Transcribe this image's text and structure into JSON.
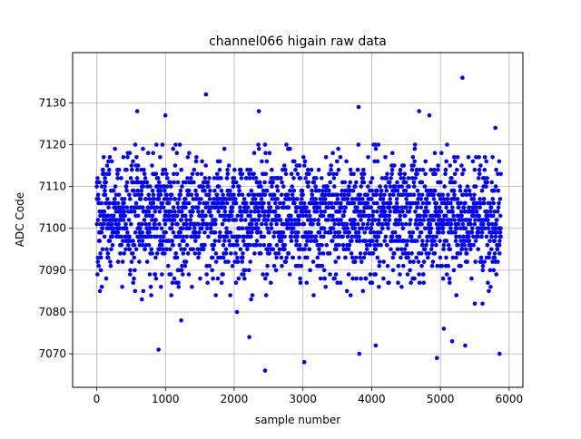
{
  "chart_data": {
    "type": "scatter",
    "title": "channel066 higain raw data",
    "xlabel": "sample number",
    "ylabel": "ADC Code",
    "xlim": [
      -350,
      6200
    ],
    "ylim": [
      7062,
      7142
    ],
    "x_ticks": [
      0,
      1000,
      2000,
      3000,
      4000,
      5000,
      6000
    ],
    "y_ticks": [
      7070,
      7080,
      7090,
      7100,
      7110,
      7120,
      7130
    ],
    "grid": true,
    "marker": "circle",
    "color": "#0000ff",
    "series": [
      {
        "n_samples": 5900,
        "x_range": [
          0,
          5880
        ],
        "mean": 7103,
        "core_band": [
          7082,
          7119
        ],
        "outliers": [
          {
            "x": 900,
            "y": 7071
          },
          {
            "x": 1590,
            "y": 7132
          },
          {
            "x": 2450,
            "y": 7066
          },
          {
            "x": 2360,
            "y": 7128
          },
          {
            "x": 3020,
            "y": 7068
          },
          {
            "x": 3810,
            "y": 7129
          },
          {
            "x": 3820,
            "y": 7070
          },
          {
            "x": 4950,
            "y": 7069
          },
          {
            "x": 5320,
            "y": 7136
          },
          {
            "x": 5860,
            "y": 7070
          },
          {
            "x": 590,
            "y": 7128
          },
          {
            "x": 1000,
            "y": 7127
          },
          {
            "x": 4690,
            "y": 7128
          },
          {
            "x": 4840,
            "y": 7127
          },
          {
            "x": 5800,
            "y": 7124
          },
          {
            "x": 1230,
            "y": 7078
          },
          {
            "x": 2220,
            "y": 7074
          },
          {
            "x": 4060,
            "y": 7072
          },
          {
            "x": 5050,
            "y": 7076
          },
          {
            "x": 5170,
            "y": 7073
          },
          {
            "x": 5360,
            "y": 7072
          }
        ]
      }
    ]
  }
}
